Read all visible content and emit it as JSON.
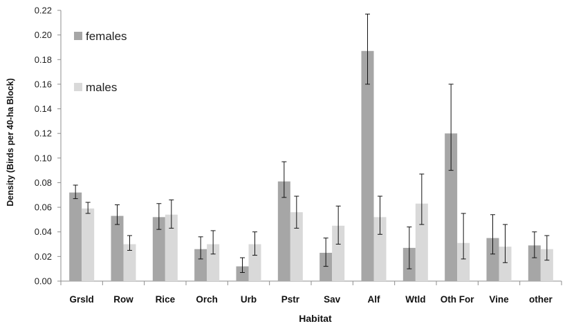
{
  "chart_data": {
    "type": "bar",
    "xlabel": "Habitat",
    "ylabel": "Density (Birds per 40-ha Block)",
    "ylim": [
      0,
      0.22
    ],
    "yticks": [
      "0.00",
      "0.02",
      "0.04",
      "0.06",
      "0.08",
      "0.10",
      "0.12",
      "0.14",
      "0.16",
      "0.18",
      "0.20",
      "0.22"
    ],
    "grid": false,
    "legend_position": "top-left",
    "categories": [
      "Grsld",
      "Row",
      "Rice",
      "Orch",
      "Urb",
      "Pstr",
      "Sav",
      "Alf",
      "Wtld",
      "Oth For",
      "Vine",
      "other"
    ],
    "series": [
      {
        "name": "females",
        "color": "#a6a6a6",
        "values": [
          0.072,
          0.053,
          0.052,
          0.026,
          0.012,
          0.081,
          0.023,
          0.187,
          0.027,
          0.12,
          0.035,
          0.029
        ],
        "err_low": [
          0.067,
          0.046,
          0.042,
          0.018,
          0.007,
          0.068,
          0.012,
          0.16,
          0.01,
          0.09,
          0.022,
          0.019
        ],
        "err_high": [
          0.078,
          0.062,
          0.063,
          0.036,
          0.019,
          0.097,
          0.035,
          0.217,
          0.044,
          0.16,
          0.054,
          0.04
        ]
      },
      {
        "name": "males",
        "color": "#d9d9d9",
        "values": [
          0.059,
          0.03,
          0.054,
          0.03,
          0.03,
          0.056,
          0.045,
          0.052,
          0.063,
          0.031,
          0.028,
          0.026
        ],
        "err_low": [
          0.055,
          0.025,
          0.043,
          0.022,
          0.021,
          0.043,
          0.03,
          0.038,
          0.046,
          0.018,
          0.015,
          0.017
        ],
        "err_high": [
          0.064,
          0.037,
          0.066,
          0.041,
          0.04,
          0.069,
          0.061,
          0.069,
          0.087,
          0.055,
          0.046,
          0.037
        ]
      }
    ]
  }
}
